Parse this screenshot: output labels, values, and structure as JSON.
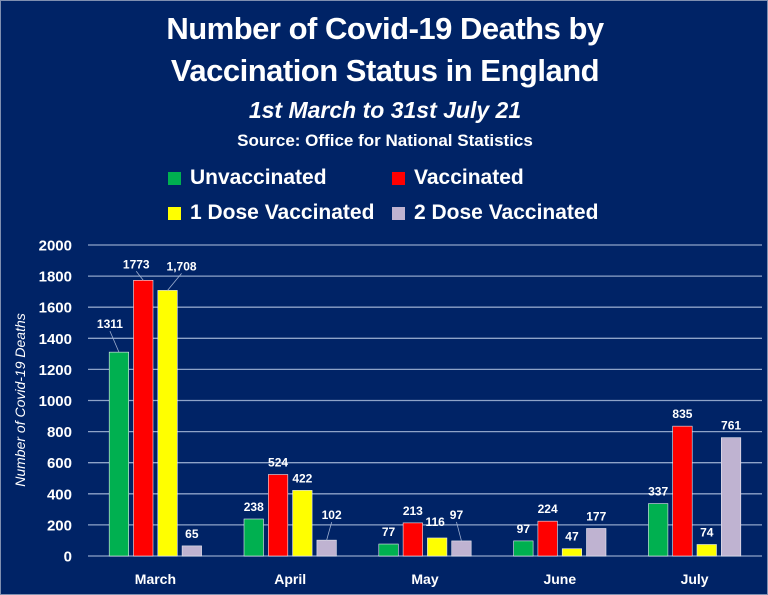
{
  "chart_data": {
    "type": "bar",
    "title": "Number of Covid-19 Deaths by Vaccination Status in England",
    "title_lines": [
      "Number of Covid-19 Deaths by",
      "Vaccination Status in England"
    ],
    "subtitle": "1st March to 31st July 21",
    "source": "Source: Office for National Statistics",
    "xlabel": "",
    "ylabel": "Number of Covid-19 Deaths",
    "ylim": [
      0,
      2000
    ],
    "yticks": [
      "0",
      "200",
      "400",
      "600",
      "800",
      "1000",
      "1200",
      "1400",
      "1600",
      "1800",
      "2000"
    ],
    "ytick_values": [
      0,
      200,
      400,
      600,
      800,
      1000,
      1200,
      1400,
      1600,
      1800,
      2000
    ],
    "grid": true,
    "legend_position": "top",
    "categories": [
      "March",
      "April",
      "May",
      "June",
      "July"
    ],
    "series": [
      {
        "name": "Unvaccinated",
        "color": "#00b050",
        "values": [
          1311,
          238,
          77,
          97,
          337
        ],
        "labels": [
          "1311",
          "238",
          "77",
          "97",
          "337"
        ]
      },
      {
        "name": "Vaccinated",
        "color": "#ff0000",
        "values": [
          1773,
          524,
          213,
          224,
          835
        ],
        "labels": [
          "1773",
          "524",
          "213",
          "224",
          "835"
        ]
      },
      {
        "name": "1 Dose Vaccinated",
        "color": "#ffff00",
        "values": [
          1708,
          422,
          116,
          47,
          74
        ],
        "labels": [
          "1,708",
          "422",
          "116",
          "47",
          "74"
        ]
      },
      {
        "name": "2 Dose Vaccinated",
        "color": "#bfb3d1",
        "values": [
          65,
          102,
          97,
          177,
          761
        ],
        "labels": [
          "65",
          "102",
          "97",
          "177",
          "761"
        ]
      }
    ]
  },
  "colors": {
    "background": "#002366",
    "gridline": "#8ea3c8",
    "text": "#ffffff"
  }
}
